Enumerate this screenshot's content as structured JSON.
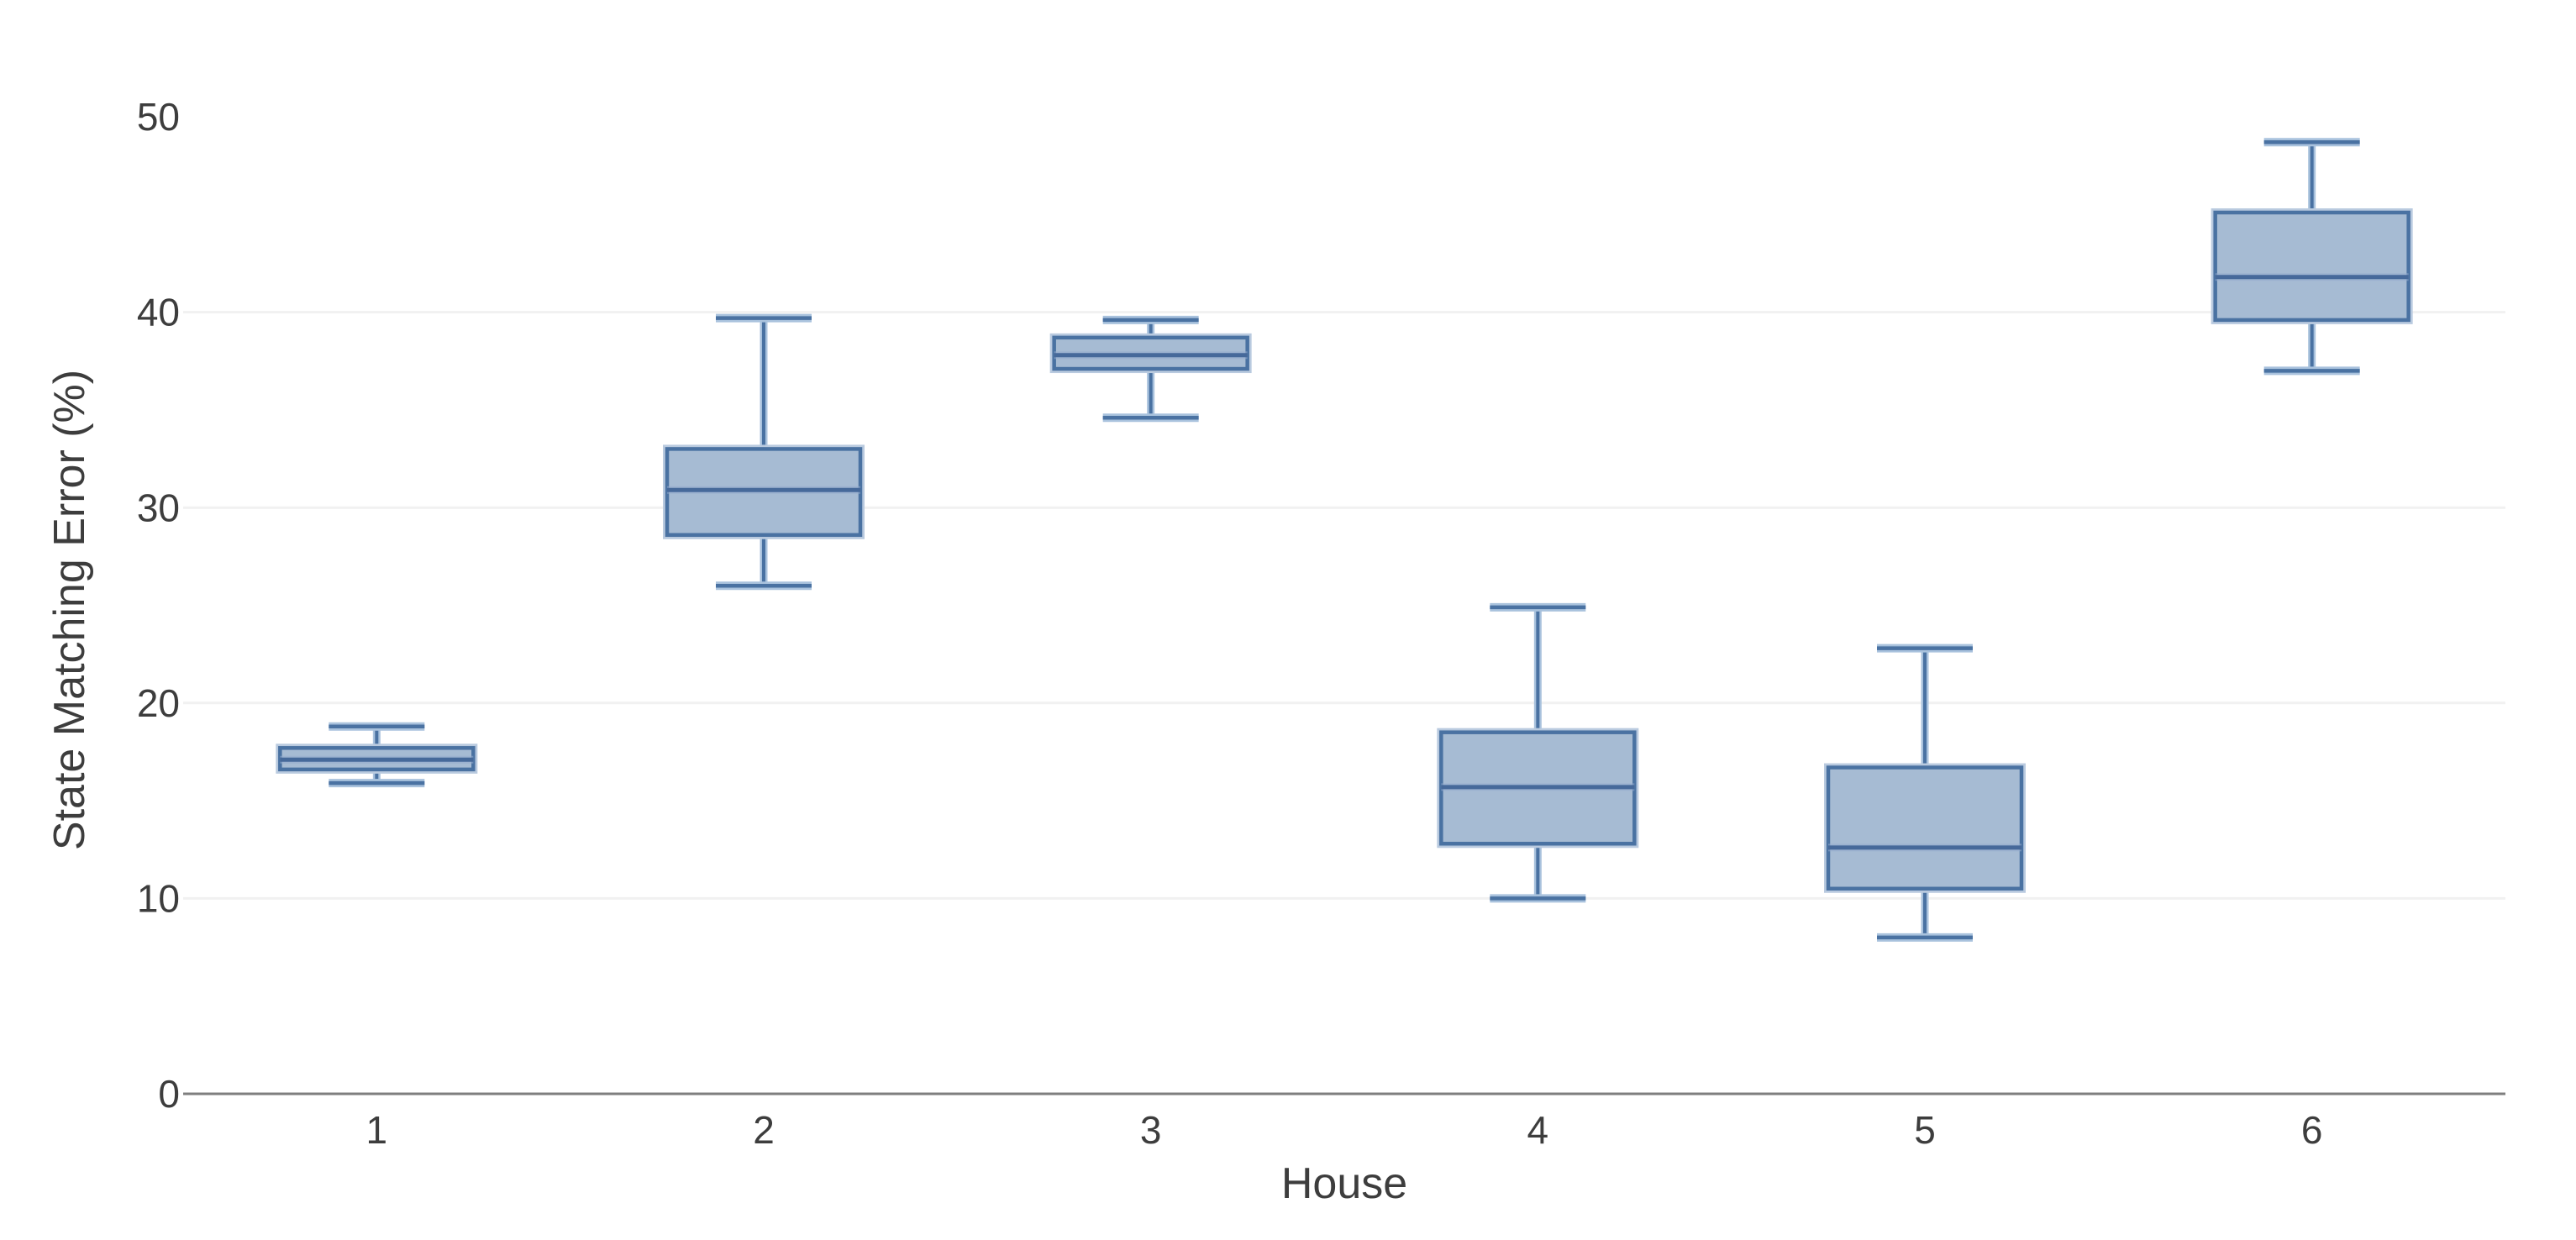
{
  "figure": {
    "background": "#ffffff"
  },
  "chart_data": {
    "type": "box",
    "title": "",
    "xlabel": "House",
    "ylabel": "State Matching Error (%)",
    "categories": [
      "1",
      "2",
      "3",
      "4",
      "5",
      "6"
    ],
    "y_axis": {
      "min": 0,
      "max": 50,
      "ticks": [
        0,
        10,
        20,
        30,
        40,
        50
      ],
      "gridlines_at": [
        10,
        20,
        30,
        40
      ]
    },
    "grid": "horizontal-only",
    "legend": "none",
    "series": [
      {
        "category": "1",
        "whisker_low": 15.9,
        "q1": 16.6,
        "median": 17.1,
        "q3": 17.7,
        "whisker_high": 18.8
      },
      {
        "category": "2",
        "whisker_low": 26.0,
        "q1": 28.6,
        "median": 30.9,
        "q3": 33.0,
        "whisker_high": 39.7
      },
      {
        "category": "3",
        "whisker_low": 34.6,
        "q1": 37.1,
        "median": 37.8,
        "q3": 38.7,
        "whisker_high": 39.6
      },
      {
        "category": "4",
        "whisker_low": 10.0,
        "q1": 12.8,
        "median": 15.7,
        "q3": 18.5,
        "whisker_high": 24.9
      },
      {
        "category": "5",
        "whisker_low": 8.0,
        "q1": 10.5,
        "median": 12.6,
        "q3": 16.7,
        "whisker_high": 22.8
      },
      {
        "category": "6",
        "whisker_low": 37.0,
        "q1": 39.6,
        "median": 41.8,
        "q3": 45.1,
        "whisker_high": 48.7
      }
    ],
    "colors": {
      "box_fill": "#a6bbd3",
      "box_stroke": "#4a72a2",
      "median_stroke": "#46699a",
      "halo": "#a9c2dd",
      "box_halo": "#b9cadf",
      "median_halo": "#93acce",
      "grid": "#f1f1f1",
      "axis_line": "#7f7f7f",
      "text": "#3d3d3d"
    }
  }
}
